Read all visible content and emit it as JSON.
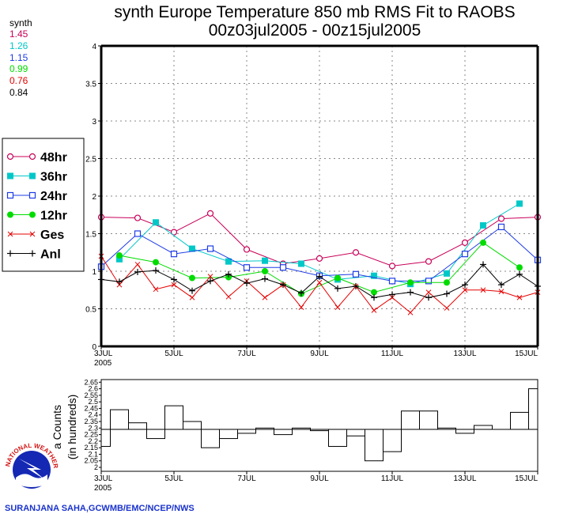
{
  "chart_data": [
    {
      "type": "line",
      "title": "synth Europe Temperature 850 mb RMS Fit to RAOBS",
      "subtitle": "00z03jul2005 - 00z15jul2005",
      "xlabel": "",
      "ylabel": "",
      "ylim": [
        0,
        4
      ],
      "yticks": [
        "0",
        "0.5",
        "1",
        "1.5",
        "2",
        "2.5",
        "3",
        "3.5",
        "4"
      ],
      "xtick_labels": [
        "3JUL",
        "5JUL",
        "7JUL",
        "9JUL",
        "11JUL",
        "13JUL",
        "15JUL"
      ],
      "xtick_year": "2005",
      "grid": true,
      "legend_position": "left",
      "x_days": [
        3,
        3.5,
        4,
        4.5,
        5,
        5.5,
        6,
        6.5,
        7,
        7.5,
        8,
        8.5,
        9,
        9.5,
        10,
        10.5,
        11,
        11.5,
        12,
        12.5,
        13,
        13.5,
        14,
        14.5,
        15
      ],
      "series": [
        {
          "name": "48hr",
          "color": "#c8005a",
          "marker": "open-circle",
          "stat": "1.45",
          "x": [
            3,
            4,
            5,
            6,
            7,
            8,
            9,
            10,
            11,
            12,
            13,
            14,
            15
          ],
          "values": [
            1.72,
            1.71,
            1.52,
            1.77,
            1.29,
            1.1,
            1.17,
            1.25,
            1.07,
            1.13,
            1.38,
            1.7,
            1.72
          ]
        },
        {
          "name": "36hr",
          "color": "#00c8c8",
          "marker": "filled-square",
          "stat": "1.26",
          "x": [
            3.5,
            4.5,
            5.5,
            6.5,
            7.5,
            8.5,
            9.5,
            10.5,
            11.5,
            12.5,
            13.5,
            14.5
          ],
          "values": [
            1.16,
            1.65,
            1.3,
            1.13,
            1.14,
            1.1,
            0.89,
            0.94,
            0.83,
            0.97,
            1.61,
            1.9
          ]
        },
        {
          "name": "24hr",
          "color": "#1e3ce6",
          "marker": "open-square",
          "stat": "1.15",
          "x": [
            3,
            4,
            5,
            6,
            7,
            8,
            9,
            10,
            11,
            12,
            13,
            14,
            15
          ],
          "values": [
            1.06,
            1.5,
            1.23,
            1.3,
            1.05,
            1.05,
            0.94,
            0.96,
            0.87,
            0.87,
            1.23,
            1.59,
            1.15
          ]
        },
        {
          "name": "12hr",
          "color": "#00dc00",
          "marker": "filled-circle",
          "stat": "0.99",
          "x": [
            3.5,
            4.5,
            5.5,
            6.5,
            7.5,
            8.5,
            9.5,
            10.5,
            11.5,
            12.5,
            13.5,
            14.5
          ],
          "values": [
            1.21,
            1.12,
            0.91,
            0.92,
            1.0,
            0.7,
            0.91,
            0.72,
            0.85,
            0.85,
            1.38,
            1.05
          ]
        },
        {
          "name": "Ges",
          "color": "#e60000",
          "marker": "x",
          "stat": "0.76",
          "x": [
            3,
            3.5,
            4,
            4.5,
            5,
            5.5,
            6,
            6.5,
            7,
            7.5,
            8,
            8.5,
            9,
            9.5,
            10,
            10.5,
            11,
            11.5,
            12,
            12.5,
            13,
            13.5,
            14,
            14.5,
            15
          ],
          "values": [
            1.2,
            0.82,
            1.09,
            0.76,
            0.82,
            0.65,
            0.93,
            0.66,
            0.87,
            0.65,
            0.82,
            0.52,
            0.85,
            0.52,
            0.8,
            0.48,
            0.65,
            0.45,
            0.72,
            0.51,
            0.75,
            0.75,
            0.73,
            0.65,
            0.72
          ]
        },
        {
          "name": "Anl",
          "color": "#000000",
          "marker": "plus",
          "stat": "0.84",
          "x": [
            3,
            3.5,
            4,
            4.5,
            5,
            5.5,
            6,
            6.5,
            7,
            7.5,
            8,
            8.5,
            9,
            9.5,
            10,
            10.5,
            11,
            11.5,
            12,
            12.5,
            13,
            13.5,
            14,
            14.5,
            15
          ],
          "values": [
            0.89,
            0.86,
            0.99,
            1.01,
            0.89,
            0.74,
            0.87,
            0.96,
            0.84,
            0.9,
            0.82,
            0.71,
            0.93,
            0.77,
            0.8,
            0.65,
            0.69,
            0.72,
            0.65,
            0.7,
            0.82,
            1.09,
            0.82,
            0.96,
            0.8
          ]
        }
      ]
    },
    {
      "type": "bar",
      "title": "",
      "ylabel": "Data Counts (in hundreds)",
      "ylabel_visible": "a Counts",
      "ylabel_line2": "(in hundreds)",
      "ylim": [
        1.97,
        2.67
      ],
      "baseline": 2.29,
      "yticks": [
        "2",
        "2.05",
        "2.1",
        "2.15",
        "2.2",
        "2.25",
        "2.3",
        "2.35",
        "2.4",
        "2.45",
        "2.5",
        "2.55",
        "2.6",
        "2.65"
      ],
      "xtick_labels": [
        "3JUL",
        "5JUL",
        "7JUL",
        "9JUL",
        "11JUL",
        "13JUL",
        "15JUL"
      ],
      "xtick_year": "2005",
      "x_days": [
        3,
        3.5,
        4,
        4.5,
        5,
        5.5,
        6,
        6.5,
        7,
        7.5,
        8,
        8.5,
        9,
        9.5,
        10,
        10.5,
        11,
        11.5,
        12,
        12.5,
        13,
        13.5,
        14,
        14.5,
        15
      ],
      "values": [
        2.16,
        2.44,
        2.34,
        2.22,
        2.47,
        2.35,
        2.15,
        2.22,
        2.26,
        2.3,
        2.25,
        2.3,
        2.28,
        2.16,
        2.24,
        2.05,
        2.12,
        2.43,
        2.43,
        2.3,
        2.26,
        2.32,
        2.29,
        2.42,
        2.6
      ]
    }
  ],
  "stats_header": "synth",
  "credit": "SURANJANA SAHA,GCWMB/EMC/NCEP/NWS",
  "logo_text": "NATIONAL WEATHER SERVICE"
}
